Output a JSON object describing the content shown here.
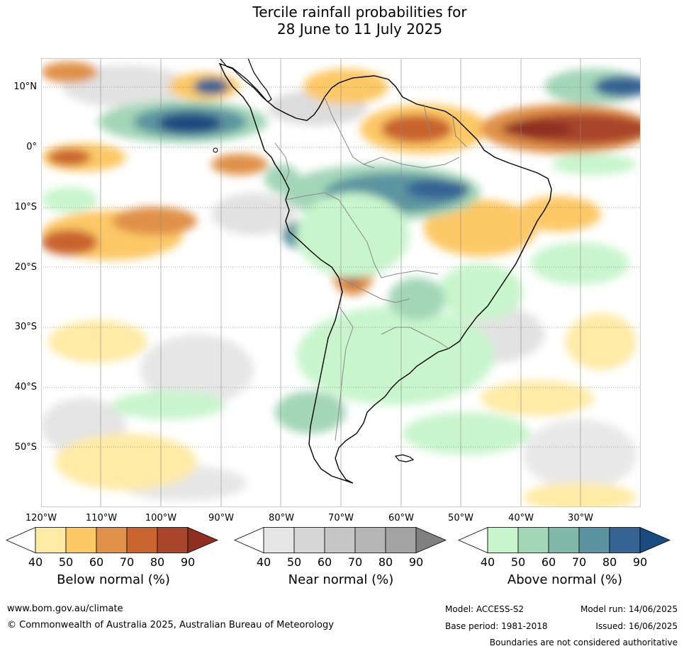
{
  "title": {
    "line1": "Tercile rainfall probabilities for",
    "line2": "28 June to 11 July 2025"
  },
  "axes": {
    "lat_labels": [
      "10°N",
      "0°",
      "10°S",
      "20°S",
      "30°S",
      "40°S",
      "50°S"
    ],
    "lon_labels": [
      "120°W",
      "110°W",
      "100°W",
      "90°W",
      "80°W",
      "70°W",
      "60°W",
      "50°W",
      "40°W",
      "30°W"
    ]
  },
  "colorbars": [
    {
      "name": "below",
      "label": "Below normal (%)",
      "ticks": [
        "40",
        "50",
        "60",
        "70",
        "80",
        "90"
      ],
      "colors": [
        "#ffeaa6",
        "#fdc866",
        "#e0914a",
        "#c9632f",
        "#a9452b",
        "#8e2f21"
      ]
    },
    {
      "name": "near",
      "label": "Near normal (%)",
      "ticks": [
        "40",
        "50",
        "60",
        "70",
        "80",
        "90"
      ],
      "colors": [
        "#e6e6e6",
        "#d6d6d6",
        "#c6c6c6",
        "#b6b6b6",
        "#a3a3a3",
        "#808080"
      ]
    },
    {
      "name": "above",
      "label": "Above normal (%)",
      "ticks": [
        "40",
        "50",
        "60",
        "70",
        "80",
        "90"
      ],
      "colors": [
        "#c8f5cc",
        "#a3d6b7",
        "#80b9aa",
        "#5b94a0",
        "#356494",
        "#1a4a80"
      ]
    }
  ],
  "footer": {
    "website": "www.bom.gov.au/climate",
    "copyright": "© Commonwealth of Australia 2025, Australian Bureau of Meteorology",
    "model": "Model: ACCESS-S2",
    "model_run": "Model run: 14/06/2025",
    "base_period": "Base period: 1981-2018",
    "issued": "Issued: 16/06/2025",
    "disclaimer": "Boundaries are not considered authoritative"
  }
}
